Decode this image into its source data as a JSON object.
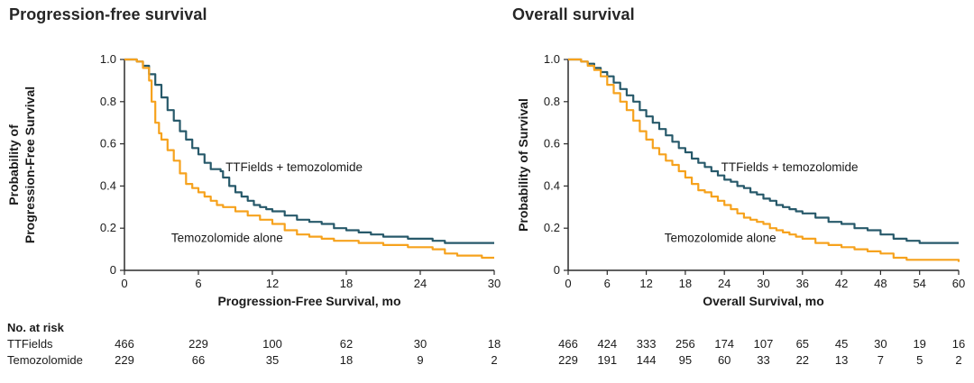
{
  "colors": {
    "ttfields": "#27596a",
    "temozolomide": "#f6a21d",
    "axis": "#2b2b2b",
    "text": "#1a1a1a"
  },
  "chart_data": [
    {
      "id": "pfs",
      "type": "line",
      "subtype": "kaplan-meier-step",
      "title": "Progression-free survival",
      "xlabel": "Progression-Free Survival, mo",
      "ylabel_lines": [
        "Probability of",
        "Progression-Free Survival"
      ],
      "xlim": [
        0,
        30
      ],
      "ylim": [
        0,
        1
      ],
      "x_ticks": [
        0,
        6,
        12,
        18,
        24,
        30
      ],
      "y_tick_values": [
        0,
        0.2,
        0.4,
        0.6,
        0.8,
        1.0
      ],
      "y_tick_labels": [
        "0",
        "0.2",
        "0.4",
        "0.6",
        "0.8",
        "1.0"
      ],
      "grid": false,
      "series": [
        {
          "name": "TTFields + temozolomide",
          "color": "#27596a",
          "points": [
            [
              0,
              1.0
            ],
            [
              1.0,
              0.99
            ],
            [
              1.5,
              0.97
            ],
            [
              2.0,
              0.93
            ],
            [
              2.5,
              0.88
            ],
            [
              3.0,
              0.82
            ],
            [
              3.5,
              0.76
            ],
            [
              4.0,
              0.71
            ],
            [
              4.5,
              0.66
            ],
            [
              5.0,
              0.62
            ],
            [
              5.5,
              0.58
            ],
            [
              6.0,
              0.55
            ],
            [
              6.5,
              0.51
            ],
            [
              7.0,
              0.48
            ],
            [
              7.8,
              0.47
            ],
            [
              8.0,
              0.44
            ],
            [
              8.5,
              0.4
            ],
            [
              9.0,
              0.37
            ],
            [
              9.5,
              0.35
            ],
            [
              10.0,
              0.33
            ],
            [
              10.5,
              0.31
            ],
            [
              11.0,
              0.3
            ],
            [
              11.5,
              0.29
            ],
            [
              12.0,
              0.28
            ],
            [
              13.0,
              0.26
            ],
            [
              14.0,
              0.24
            ],
            [
              15.0,
              0.23
            ],
            [
              16.0,
              0.22
            ],
            [
              17.0,
              0.2
            ],
            [
              18.0,
              0.19
            ],
            [
              19.0,
              0.18
            ],
            [
              20.0,
              0.17
            ],
            [
              21.0,
              0.16
            ],
            [
              22.0,
              0.16
            ],
            [
              23.0,
              0.15
            ],
            [
              24.0,
              0.15
            ],
            [
              25.0,
              0.14
            ],
            [
              26.0,
              0.13
            ],
            [
              28.0,
              0.13
            ],
            [
              30.0,
              0.13
            ]
          ]
        },
        {
          "name": "Temozolomide alone",
          "color": "#f6a21d",
          "points": [
            [
              0,
              1.0
            ],
            [
              1.0,
              0.99
            ],
            [
              1.5,
              0.96
            ],
            [
              2.0,
              0.9
            ],
            [
              2.2,
              0.8
            ],
            [
              2.5,
              0.7
            ],
            [
              2.8,
              0.65
            ],
            [
              3.0,
              0.62
            ],
            [
              3.5,
              0.57
            ],
            [
              4.0,
              0.52
            ],
            [
              4.5,
              0.46
            ],
            [
              5.0,
              0.41
            ],
            [
              5.5,
              0.39
            ],
            [
              6.0,
              0.37
            ],
            [
              6.5,
              0.35
            ],
            [
              7.0,
              0.33
            ],
            [
              7.5,
              0.31
            ],
            [
              8.0,
              0.3
            ],
            [
              9.0,
              0.28
            ],
            [
              10.0,
              0.26
            ],
            [
              11.0,
              0.24
            ],
            [
              12.0,
              0.22
            ],
            [
              13.0,
              0.19
            ],
            [
              14.0,
              0.17
            ],
            [
              15.0,
              0.16
            ],
            [
              16.0,
              0.15
            ],
            [
              17.0,
              0.14
            ],
            [
              18.0,
              0.14
            ],
            [
              19.0,
              0.13
            ],
            [
              20.0,
              0.13
            ],
            [
              21.0,
              0.12
            ],
            [
              22.0,
              0.12
            ],
            [
              23.0,
              0.11
            ],
            [
              24.0,
              0.11
            ],
            [
              25.0,
              0.1
            ],
            [
              26.0,
              0.08
            ],
            [
              27.0,
              0.07
            ],
            [
              28.0,
              0.07
            ],
            [
              29.0,
              0.06
            ],
            [
              30.0,
              0.06
            ]
          ]
        }
      ],
      "annotations": [
        {
          "text": "TTFields + temozolomide",
          "x": 8.2,
          "y": 0.47
        },
        {
          "text": "Temozolomide alone",
          "x": 3.8,
          "y": 0.135
        }
      ]
    },
    {
      "id": "os",
      "type": "line",
      "subtype": "kaplan-meier-step",
      "title": "Overall survival",
      "xlabel": "Overall Survival, mo",
      "ylabel_lines": [
        "Probability of Survival"
      ],
      "xlim": [
        0,
        60
      ],
      "ylim": [
        0,
        1
      ],
      "x_ticks": [
        0,
        6,
        12,
        18,
        24,
        30,
        36,
        42,
        48,
        54,
        60
      ],
      "y_tick_values": [
        0,
        0.2,
        0.4,
        0.6,
        0.8,
        1.0
      ],
      "y_tick_labels": [
        "0",
        "0.2",
        "0.4",
        "0.6",
        "0.8",
        "1.0"
      ],
      "grid": false,
      "series": [
        {
          "name": "TTFields + temozolomide",
          "color": "#27596a",
          "points": [
            [
              0,
              1.0
            ],
            [
              2,
              0.99
            ],
            [
              3,
              0.98
            ],
            [
              4,
              0.96
            ],
            [
              5,
              0.94
            ],
            [
              6,
              0.92
            ],
            [
              7,
              0.89
            ],
            [
              8,
              0.86
            ],
            [
              9,
              0.83
            ],
            [
              10,
              0.8
            ],
            [
              11,
              0.76
            ],
            [
              12,
              0.73
            ],
            [
              13,
              0.7
            ],
            [
              14,
              0.67
            ],
            [
              15,
              0.64
            ],
            [
              16,
              0.61
            ],
            [
              17,
              0.58
            ],
            [
              18,
              0.56
            ],
            [
              19,
              0.53
            ],
            [
              20,
              0.51
            ],
            [
              21,
              0.49
            ],
            [
              22,
              0.47
            ],
            [
              23,
              0.45
            ],
            [
              24,
              0.43
            ],
            [
              25,
              0.42
            ],
            [
              26,
              0.4
            ],
            [
              27,
              0.39
            ],
            [
              28,
              0.37
            ],
            [
              29,
              0.36
            ],
            [
              30,
              0.34
            ],
            [
              31,
              0.33
            ],
            [
              32,
              0.31
            ],
            [
              33,
              0.3
            ],
            [
              34,
              0.29
            ],
            [
              35,
              0.28
            ],
            [
              36,
              0.27
            ],
            [
              38,
              0.25
            ],
            [
              40,
              0.23
            ],
            [
              42,
              0.22
            ],
            [
              44,
              0.2
            ],
            [
              46,
              0.19
            ],
            [
              48,
              0.17
            ],
            [
              50,
              0.15
            ],
            [
              52,
              0.14
            ],
            [
              54,
              0.13
            ],
            [
              60,
              0.13
            ]
          ]
        },
        {
          "name": "Temozolomide alone",
          "color": "#f6a21d",
          "points": [
            [
              0,
              1.0
            ],
            [
              2,
              0.99
            ],
            [
              3,
              0.97
            ],
            [
              4,
              0.95
            ],
            [
              5,
              0.92
            ],
            [
              6,
              0.88
            ],
            [
              7,
              0.84
            ],
            [
              8,
              0.8
            ],
            [
              9,
              0.76
            ],
            [
              10,
              0.71
            ],
            [
              11,
              0.66
            ],
            [
              12,
              0.62
            ],
            [
              13,
              0.58
            ],
            [
              14,
              0.55
            ],
            [
              15,
              0.52
            ],
            [
              16,
              0.5
            ],
            [
              17,
              0.47
            ],
            [
              18,
              0.44
            ],
            [
              19,
              0.41
            ],
            [
              20,
              0.38
            ],
            [
              21,
              0.37
            ],
            [
              22,
              0.35
            ],
            [
              23,
              0.33
            ],
            [
              24,
              0.31
            ],
            [
              25,
              0.29
            ],
            [
              26,
              0.27
            ],
            [
              27,
              0.25
            ],
            [
              28,
              0.24
            ],
            [
              29,
              0.23
            ],
            [
              30,
              0.22
            ],
            [
              31,
              0.2
            ],
            [
              32,
              0.19
            ],
            [
              33,
              0.18
            ],
            [
              34,
              0.17
            ],
            [
              35,
              0.16
            ],
            [
              36,
              0.15
            ],
            [
              38,
              0.13
            ],
            [
              40,
              0.12
            ],
            [
              42,
              0.11
            ],
            [
              44,
              0.1
            ],
            [
              46,
              0.09
            ],
            [
              48,
              0.08
            ],
            [
              50,
              0.06
            ],
            [
              52,
              0.05
            ],
            [
              54,
              0.05
            ],
            [
              60,
              0.04
            ]
          ]
        }
      ],
      "annotations": [
        {
          "text": "TTFields + temozolomide",
          "x": 23.5,
          "y": 0.47
        },
        {
          "text": "Temozolomide alone",
          "x": 14.8,
          "y": 0.135
        }
      ]
    }
  ],
  "risk_table": {
    "heading": "No. at risk",
    "rows": [
      {
        "label": "TTFields",
        "pfs": [
          466,
          229,
          100,
          62,
          30,
          18
        ],
        "os": [
          466,
          424,
          333,
          256,
          174,
          107,
          65,
          45,
          30,
          19,
          16
        ]
      },
      {
        "label": "Temozolomide",
        "pfs": [
          229,
          66,
          35,
          18,
          9,
          2
        ],
        "os": [
          229,
          191,
          144,
          95,
          60,
          33,
          22,
          13,
          7,
          5,
          2
        ]
      }
    ]
  }
}
